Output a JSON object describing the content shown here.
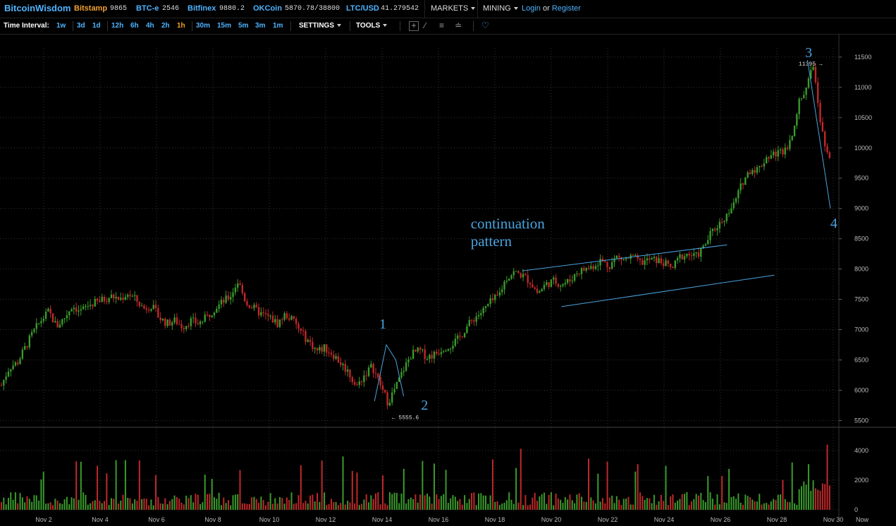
{
  "header": {
    "logo": "BitcoinWisdom",
    "tickers": [
      {
        "exchange": "Bitstamp",
        "price": "9865",
        "accent": "#f0a030"
      },
      {
        "exchange": "BTC-e",
        "price": "2546",
        "accent": "#4fb3ff"
      },
      {
        "exchange": "Bitfinex",
        "price": "9880.2",
        "accent": "#4fb3ff"
      },
      {
        "exchange": "OKCoin",
        "price": "5870.78/38800",
        "accent": "#4fb3ff"
      },
      {
        "exchange": "LTC/USD",
        "price": "41.279542",
        "accent": "#4fb3ff"
      }
    ],
    "markets_label": "MARKETS",
    "mining_label": "MINING",
    "login_label": "Login",
    "or_label": "or",
    "register_label": "Register"
  },
  "toolbar": {
    "time_interval_label": "Time Interval:",
    "intervals": [
      "1w",
      "3d",
      "1d",
      "12h",
      "6h",
      "4h",
      "2h",
      "1h",
      "30m",
      "15m",
      "5m",
      "3m",
      "1m"
    ],
    "active_interval": "1h",
    "settings_label": "SETTINGS",
    "tools_label": "TOOLS",
    "icons": [
      "crosshair-icon",
      "line-draw-icon",
      "fib-lines-icon",
      "brush-icon",
      "alert-bell-icon"
    ]
  },
  "chart_data": {
    "type": "candlestick",
    "price_axis_ticks": [
      5500,
      6000,
      6500,
      7000,
      7500,
      8000,
      8500,
      9000,
      9500,
      10000,
      10500,
      11000,
      11500
    ],
    "volume_axis_ticks": [
      0,
      2000,
      4000
    ],
    "x_tick_labels": [
      "Nov 2",
      "Nov 4",
      "Nov 6",
      "Nov 8",
      "Nov 10",
      "Nov 12",
      "Nov 14",
      "Nov 16",
      "Nov 18",
      "Nov 20",
      "Nov 22",
      "Nov 24",
      "Nov 26",
      "Nov 28",
      "Nov 30",
      "Now"
    ],
    "y_range": [
      5400,
      11650
    ],
    "high_marker": {
      "label": "11395 →",
      "value": 11395
    },
    "low_marker": {
      "label": "← 5555.6",
      "value": 5555.6
    },
    "price_path": [
      [
        0,
        6080
      ],
      [
        1,
        6380
      ],
      [
        2,
        6450
      ],
      [
        3,
        6700
      ],
      [
        4,
        6950
      ],
      [
        5,
        7150
      ],
      [
        6,
        7300
      ],
      [
        7,
        7050
      ],
      [
        8,
        7200
      ],
      [
        9,
        7400
      ],
      [
        10,
        7300
      ],
      [
        11,
        7400
      ],
      [
        12,
        7450
      ],
      [
        13,
        7500
      ],
      [
        14,
        7550
      ],
      [
        15,
        7500
      ],
      [
        16,
        7600
      ],
      [
        17,
        7500
      ],
      [
        18,
        7350
      ],
      [
        19,
        7400
      ],
      [
        20,
        7200
      ],
      [
        21,
        7100
      ],
      [
        22,
        7150
      ],
      [
        23,
        7050
      ],
      [
        24,
        7150
      ],
      [
        25,
        7100
      ],
      [
        26,
        7200
      ],
      [
        27,
        7350
      ],
      [
        28,
        7450
      ],
      [
        29,
        7550
      ],
      [
        30,
        7800
      ],
      [
        31,
        7450
      ],
      [
        32,
        7350
      ],
      [
        33,
        7250
      ],
      [
        34,
        7200
      ],
      [
        35,
        7100
      ],
      [
        36,
        7250
      ],
      [
        37,
        7150
      ],
      [
        38,
        6950
      ],
      [
        39,
        6800
      ],
      [
        40,
        6650
      ],
      [
        41,
        6700
      ],
      [
        42,
        6600
      ],
      [
        43,
        6450
      ],
      [
        44,
        6300
      ],
      [
        45,
        6050
      ],
      [
        46,
        6250
      ],
      [
        47,
        6400
      ],
      [
        48,
        6100
      ],
      [
        49,
        5800
      ],
      [
        50,
        6050
      ],
      [
        51,
        6350
      ],
      [
        52,
        6600
      ],
      [
        53,
        6650
      ],
      [
        54,
        6550
      ],
      [
        55,
        6600
      ],
      [
        56,
        6700
      ],
      [
        57,
        6750
      ],
      [
        58,
        6850
      ],
      [
        59,
        7050
      ],
      [
        60,
        7200
      ],
      [
        61,
        7300
      ],
      [
        62,
        7450
      ],
      [
        63,
        7550
      ],
      [
        64,
        7850
      ],
      [
        65,
        7950
      ],
      [
        66,
        7900
      ],
      [
        67,
        7800
      ],
      [
        68,
        7600
      ],
      [
        69,
        7750
      ],
      [
        70,
        7800
      ],
      [
        71,
        7750
      ],
      [
        72,
        7800
      ],
      [
        73,
        7950
      ],
      [
        74,
        8000
      ],
      [
        75,
        8050
      ],
      [
        76,
        8150
      ],
      [
        77,
        8050
      ],
      [
        78,
        8200
      ],
      [
        79,
        8150
      ],
      [
        80,
        8200
      ],
      [
        81,
        8100
      ],
      [
        82,
        8150
      ],
      [
        83,
        8150
      ],
      [
        84,
        8100
      ],
      [
        85,
        8000
      ],
      [
        86,
        8200
      ],
      [
        87,
        8250
      ],
      [
        88,
        8200
      ],
      [
        89,
        8350
      ],
      [
        90,
        8600
      ],
      [
        91,
        8750
      ],
      [
        92,
        8900
      ],
      [
        93,
        9100
      ],
      [
        94,
        9450
      ],
      [
        95,
        9650
      ],
      [
        96,
        9650
      ],
      [
        97,
        9850
      ],
      [
        98,
        9900
      ],
      [
        99,
        9950
      ],
      [
        100,
        10100
      ],
      [
        101,
        10700
      ],
      [
        102,
        11000
      ],
      [
        103,
        11350
      ],
      [
        104,
        10300
      ],
      [
        105,
        9800
      ]
    ],
    "annotations": [
      {
        "text": "1",
        "kind": "wave-label"
      },
      {
        "text": "2",
        "kind": "wave-label"
      },
      {
        "text": "3",
        "kind": "wave-label"
      },
      {
        "text": "4",
        "kind": "wave-label"
      },
      {
        "text": "continuation",
        "kind": "note"
      },
      {
        "text": "pattern",
        "kind": "note"
      }
    ],
    "channel": {
      "upper": [
        [
          66,
          7970
        ],
        [
          92,
          8400
        ]
      ],
      "lower": [
        [
          71,
          7380
        ],
        [
          98,
          7900
        ]
      ]
    },
    "colors": {
      "up": "#3a9b2c",
      "down": "#c0282a",
      "annotation": "#4aa3df",
      "grid": "#333333",
      "axis_text": "#bbbbbb"
    }
  }
}
